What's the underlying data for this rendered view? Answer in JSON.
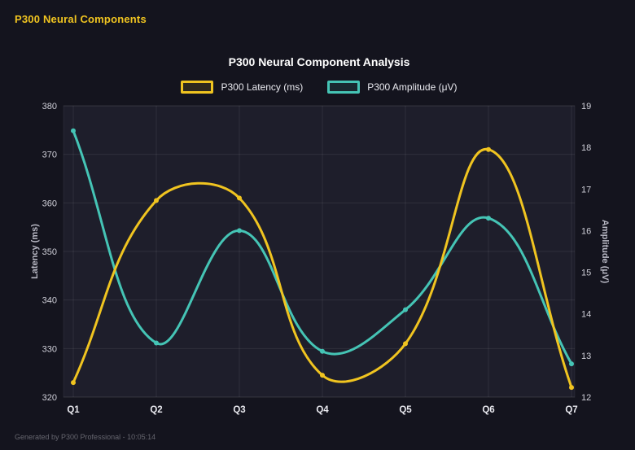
{
  "header": {
    "app_title": "P300 Neural Components"
  },
  "footer": {
    "text": "Generated by P300 Professional - 10:05:14"
  },
  "colors": {
    "accent_yellow": "#f0c420",
    "accent_teal": "#45c4b5",
    "background": "#14141e",
    "plot_background": "#1e1e2b",
    "grid": "rgba(255,255,255,0.08)",
    "tick_text": "#cfcfd8",
    "x_tick_text": "#e9e9ef",
    "axis_title_text": "#b9b9c5"
  },
  "chart_data": {
    "type": "line",
    "title": "P300 Neural Component Analysis",
    "categories": [
      "Q1",
      "Q2",
      "Q3",
      "Q4",
      "Q5",
      "Q6",
      "Q7"
    ],
    "series": [
      {
        "name": "P300 Latency (ms)",
        "axis": "left",
        "color": "#f0c420",
        "values": [
          323,
          360.5,
          361,
          324.5,
          331,
          371,
          322
        ]
      },
      {
        "name": "P300 Amplitude (μV)",
        "axis": "right",
        "color": "#45c4b5",
        "values": [
          18.4,
          13.3,
          16.0,
          13.1,
          14.1,
          16.3,
          12.8
        ]
      }
    ],
    "left_axis": {
      "label": "Latency (ms)",
      "min": 320,
      "max": 380,
      "ticks": [
        320,
        330,
        340,
        350,
        360,
        370,
        380
      ]
    },
    "right_axis": {
      "label": "Amplitude (μV)",
      "min": 12,
      "max": 19,
      "ticks": [
        12,
        13,
        14,
        15,
        16,
        17,
        18,
        19
      ]
    },
    "grid": true,
    "legend_position": "top",
    "line_tension": 0.4
  }
}
